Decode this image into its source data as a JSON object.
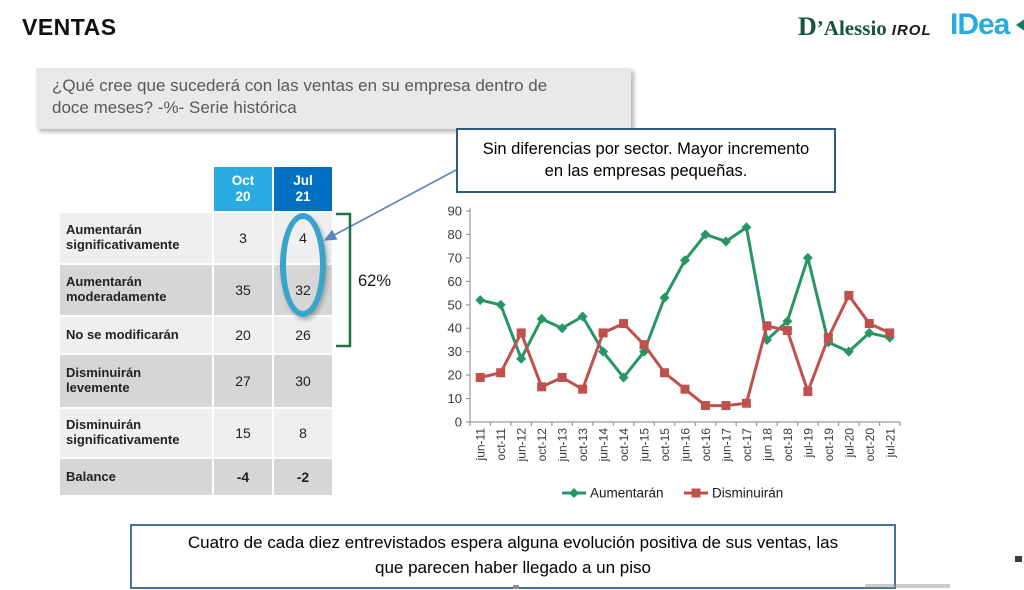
{
  "slide": {
    "title": "VENTAS",
    "question": "¿Qué cree que sucederá con las ventas en su empresa dentro de doce meses? -%- Serie histórica",
    "callout": "Sin diferencias por sector. Mayor incremento en las empresas pequeñas.",
    "highlight_percent": "62%",
    "conclusion": "Cuatro de cada diez entrevistados espera alguna evolución positiva de sus ventas, las que parecen haber llegado a un piso"
  },
  "logos": {
    "dalessio_d": "D",
    "dalessio_rest": "’Alessio",
    "irol": "IROL",
    "idea": "IDea"
  },
  "table": {
    "columns": [
      "Oct\n20",
      "Jul\n21"
    ],
    "rows": [
      {
        "label": "Aumentarán significativamente",
        "values": [
          "3",
          "4"
        ],
        "bold": false
      },
      {
        "label": "Aumentarán moderadamente",
        "values": [
          "35",
          "32"
        ],
        "bold": false
      },
      {
        "label": "No se modificarán",
        "values": [
          "20",
          "26"
        ],
        "bold": false
      },
      {
        "label": "Disminuirán levemente",
        "values": [
          "27",
          "30"
        ],
        "bold": false
      },
      {
        "label": "Disminuirán significativamente",
        "values": [
          "15",
          "8"
        ],
        "bold": false
      },
      {
        "label": "Balance",
        "values": [
          "-4",
          "-2"
        ],
        "bold": true
      }
    ]
  },
  "chart_data": {
    "type": "line",
    "title": "",
    "xlabel": "",
    "ylabel": "",
    "categories": [
      "jun-11",
      "oct-11",
      "jun-12",
      "oct-12",
      "jun-13",
      "oct-13",
      "jun-14",
      "oct-14",
      "jun-15",
      "oct-15",
      "jun-16",
      "oct-16",
      "jun-17",
      "oct-17",
      "jun 18",
      "oct-18",
      "jul-19",
      "oct-19",
      "jul-20",
      "oct-20",
      "jul-21"
    ],
    "series": [
      {
        "name": "Aumentarán",
        "marker": "diamond",
        "color": "#289664",
        "values": [
          52,
          50,
          27,
          44,
          40,
          45,
          30,
          19,
          30,
          53,
          69,
          80,
          77,
          83,
          35,
          43,
          70,
          34,
          30,
          38,
          36
        ]
      },
      {
        "name": "Disminuirán",
        "marker": "square",
        "color": "#C0504D",
        "values": [
          19,
          21,
          38,
          15,
          19,
          14,
          38,
          42,
          33,
          21,
          14,
          7,
          7,
          8,
          41,
          39,
          13,
          36,
          54,
          42,
          38
        ]
      }
    ],
    "ylim": [
      0,
      90
    ],
    "yticks": [
      0,
      10,
      20,
      30,
      40,
      50,
      60,
      70,
      80,
      90
    ],
    "grid": false,
    "legend_position": "bottom"
  },
  "colors": {
    "col_oct20": "#29ABE2",
    "col_jul21": "#0070C0",
    "row_light": "#EFEFEF",
    "row_dark": "#D6D6D6",
    "series_up": "#289664",
    "series_down": "#C0504D",
    "bracket": "#1E7145",
    "ellipse": "#3AA3CB",
    "arrow": "#5B84C4",
    "callout_border": "#2E5C8A",
    "conclusion_border": "#41719C",
    "question_bg": "#E9E9E9",
    "question_text": "#595959",
    "idea_blue": "#29ABE2",
    "dalessio_green": "#17563C",
    "axis": "#9a9a9a",
    "label_text": "#3a3a3a"
  }
}
